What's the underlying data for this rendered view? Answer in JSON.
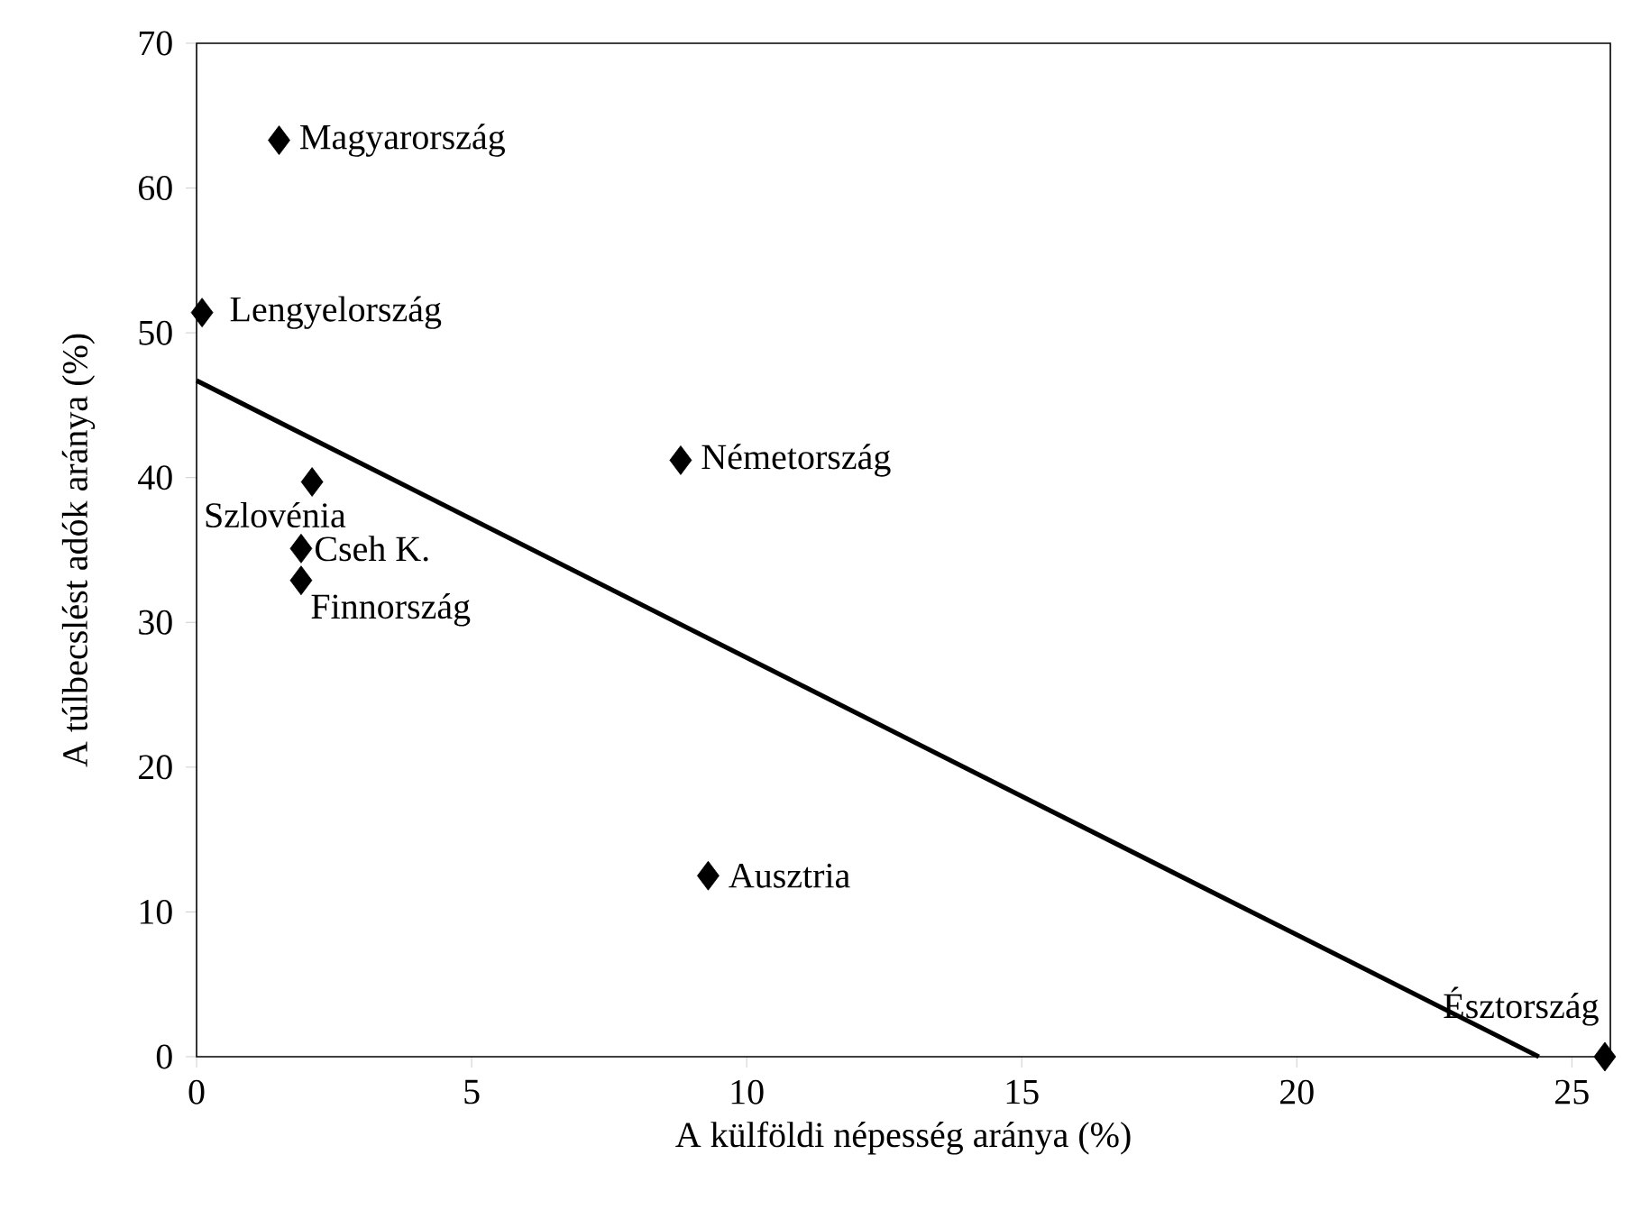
{
  "chart_data": {
    "type": "scatter",
    "xlabel": "A külföldi népesség aránya (%)",
    "ylabel": "A túlbecslést adók aránya (%)",
    "xlim": [
      0,
      25.7
    ],
    "ylim": [
      0,
      70
    ],
    "xticks": [
      0,
      5,
      10,
      15,
      20,
      25
    ],
    "yticks": [
      0,
      10,
      20,
      30,
      40,
      50,
      60,
      70
    ],
    "marker": "diamond",
    "series": [
      {
        "color": "#000000",
        "x": [
          1.5,
          0.1,
          2.1,
          1.9,
          1.9,
          8.8,
          9.3,
          25.6
        ],
        "values": [
          63.3,
          51.4,
          39.7,
          35.1,
          32.9,
          41.2,
          12.5,
          0
        ]
      },
      {
        "type": "line",
        "color": "#000000",
        "line_style": "solid",
        "marker": "none",
        "x": [
          0,
          24.4
        ],
        "values": [
          46.7,
          0
        ]
      }
    ],
    "annotations": [
      {
        "text": "Magyarország",
        "x": 1.5,
        "y": 63.3
      },
      {
        "text": "Lengyelország",
        "x": 0.1,
        "y": 51.4
      },
      {
        "text": "Szlovénia",
        "x": 2.1,
        "y": 39.7
      },
      {
        "text": "Cseh K.",
        "x": 1.9,
        "y": 35.1
      },
      {
        "text": "Finnország",
        "x": 1.9,
        "y": 32.9
      },
      {
        "text": "Németország",
        "x": 8.8,
        "y": 41.2
      },
      {
        "text": "Ausztria",
        "x": 9.3,
        "y": 12.5
      },
      {
        "text": "Észtország",
        "x": 25.6,
        "y": 0
      }
    ]
  }
}
